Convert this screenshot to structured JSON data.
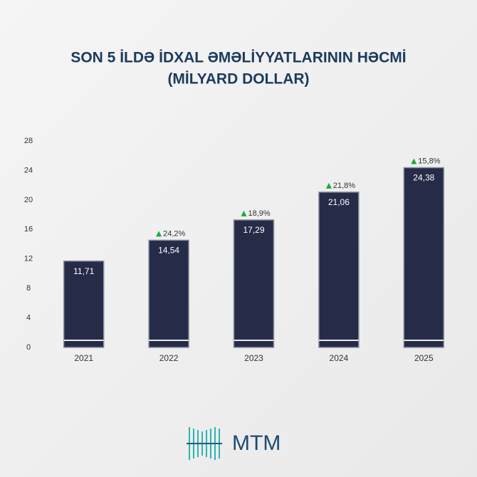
{
  "chart_data": {
    "type": "bar",
    "title": "SON 5 İLDƏ İDXAL ƏMƏLİYYATLARININ HƏCMİ",
    "subtitle": "(MİLYARD DOLLAR)",
    "categories": [
      "2021",
      "2022",
      "2023",
      "2024",
      "2025"
    ],
    "values": [
      11.71,
      14.54,
      17.29,
      21.06,
      24.38
    ],
    "value_labels": [
      "11,71",
      "14,54",
      "17,29",
      "21,06",
      "24,38"
    ],
    "growth": [
      null,
      24.2,
      18.9,
      21.8,
      15.8
    ],
    "growth_labels": [
      null,
      "24,2%",
      "18,9%",
      "21,8%",
      "15,8%"
    ],
    "color": "#262b47",
    "ylim": [
      0,
      28
    ],
    "yticks": [
      0,
      4,
      8,
      12,
      16,
      20,
      24,
      28
    ],
    "grid": false
  },
  "logo": {
    "text": "MTM"
  }
}
